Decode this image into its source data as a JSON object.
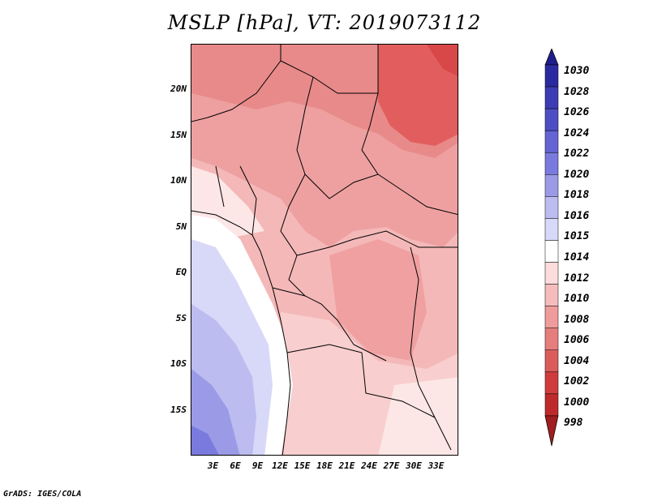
{
  "title": "MSLP [hPa], VT: 2019073112",
  "credit": "GrADS: IGES/COLA",
  "map": {
    "lon_range": [
      0,
      36
    ],
    "lat_range": [
      -20,
      25
    ],
    "lat_ticks": [
      {
        "value": 20,
        "label": "20N"
      },
      {
        "value": 15,
        "label": "15N"
      },
      {
        "value": 10,
        "label": "10N"
      },
      {
        "value": 5,
        "label": "5N"
      },
      {
        "value": 0,
        "label": "EQ"
      },
      {
        "value": -5,
        "label": "5S"
      },
      {
        "value": -10,
        "label": "10S"
      },
      {
        "value": -15,
        "label": "15S"
      }
    ],
    "lon_ticks": [
      {
        "value": 3,
        "label": "3E"
      },
      {
        "value": 6,
        "label": "6E"
      },
      {
        "value": 9,
        "label": "9E"
      },
      {
        "value": 12,
        "label": "12E"
      },
      {
        "value": 15,
        "label": "15E"
      },
      {
        "value": 18,
        "label": "18E"
      },
      {
        "value": 21,
        "label": "21E"
      },
      {
        "value": 24,
        "label": "24E"
      },
      {
        "value": 27,
        "label": "27E"
      },
      {
        "value": 30,
        "label": "30E"
      },
      {
        "value": 33,
        "label": "33E"
      }
    ]
  },
  "colorbar": {
    "levels": [
      "1030",
      "1028",
      "1026",
      "1024",
      "1022",
      "1020",
      "1018",
      "1016",
      "1015",
      "1014",
      "1012",
      "1010",
      "1008",
      "1006",
      "1004",
      "1002",
      "1000",
      "998"
    ],
    "colors": [
      "#1e1e8c",
      "#2a2aa0",
      "#3c3cb4",
      "#4e4ec4",
      "#6464d2",
      "#7a7ade",
      "#9a9ae6",
      "#bcbcf0",
      "#d8d8f8",
      "#ffffff",
      "#fcdcdc",
      "#f6bcbc",
      "#f09c9c",
      "#e67e7e",
      "#dc5c5c",
      "#d03c3c",
      "#be2a2a",
      "#a01e1e"
    ]
  }
}
